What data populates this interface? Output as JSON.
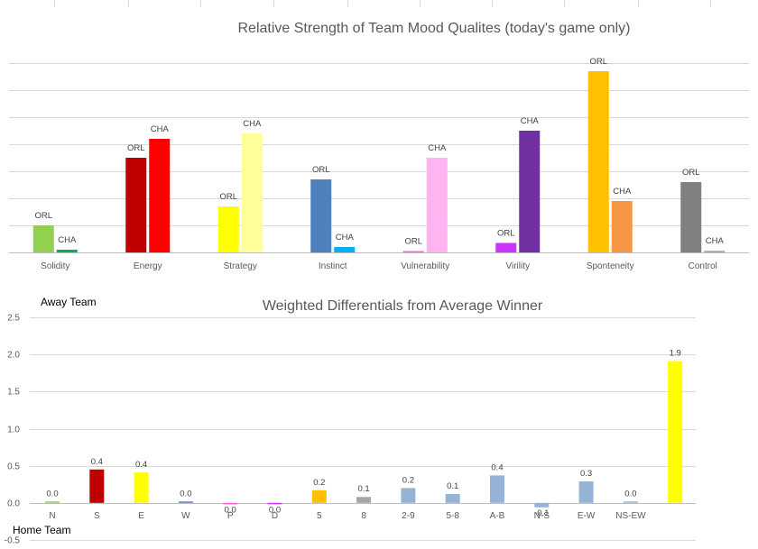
{
  "chart_data": [
    {
      "type": "bar",
      "title": "Relative Strength of Team Mood Qualites (today's game only)",
      "categories": [
        "Solidity",
        "Energy",
        "Strategy",
        "Instinct",
        "Vulnerability",
        "Virility",
        "Sponteneity",
        "Control"
      ],
      "ylim": [
        0,
        7
      ],
      "grid": true,
      "series": [
        {
          "name": "ORL",
          "values": [
            1.0,
            3.5,
            1.7,
            2.7,
            0.05,
            0.35,
            6.7,
            2.6
          ],
          "colors": [
            "#92d050",
            "#c00000",
            "#ffff00",
            "#4f81bd",
            "#ff66cc",
            "#cc33ff",
            "#ffc000",
            "#808080"
          ]
        },
        {
          "name": "CHA",
          "values": [
            0.1,
            4.2,
            4.4,
            0.2,
            3.5,
            4.5,
            1.9,
            0.06
          ],
          "colors": [
            "#00b050",
            "#ff0000",
            "#ffff99",
            "#00b0f0",
            "#ffb3f0",
            "#7030a0",
            "#f79646",
            "#a6a6a6"
          ]
        }
      ]
    },
    {
      "type": "bar",
      "title": "Weighted Differentials from Average Winner",
      "top_label": "Away Team",
      "bottom_label": "Home Team",
      "categories": [
        "N",
        "S",
        "E",
        "W",
        "P",
        "D",
        "5",
        "8",
        "2-9",
        "5-8",
        "A-B",
        "N-S",
        "E-W",
        "NS-EW",
        ""
      ],
      "values": [
        0.01,
        0.45,
        0.41,
        0.01,
        -0.02,
        -0.01,
        0.17,
        0.08,
        0.2,
        0.12,
        0.37,
        -0.06,
        0.29,
        0.0,
        1.91
      ],
      "data_labels": [
        "0.0",
        "0.4",
        "0.4",
        "0.0",
        "0.0",
        "0.0",
        "0.2",
        "0.1",
        "0.2",
        "0.1",
        "0.4",
        "-0.1",
        "0.3",
        "0.0",
        "1.9"
      ],
      "colors": [
        "#92d050",
        "#c00000",
        "#ffff00",
        "#4f81bd",
        "#ff66cc",
        "#cc33ff",
        "#ffc000",
        "#a6a6a6",
        "#95b3d7",
        "#95b3d7",
        "#95b3d7",
        "#95b3d7",
        "#95b3d7",
        "#95b3d7",
        "#ffff00"
      ],
      "ylim": [
        -0.5,
        2.5
      ],
      "yticks": [
        "-0.5",
        "0.0",
        "0.5",
        "1.0",
        "1.5",
        "2.0",
        "2.5"
      ],
      "grid": true
    }
  ]
}
